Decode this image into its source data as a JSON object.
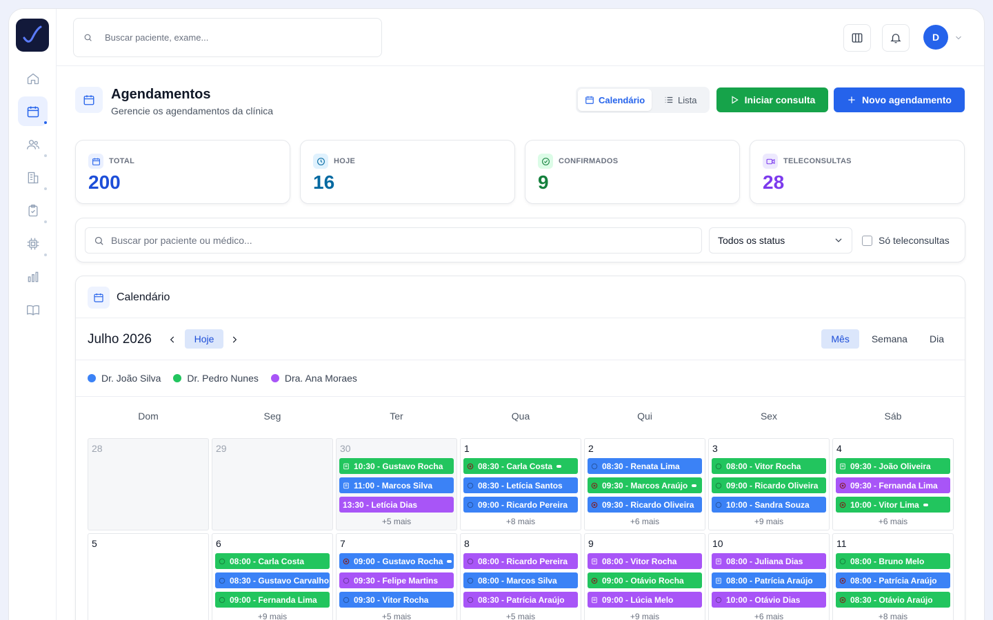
{
  "topbar": {
    "search_placeholder": "Buscar paciente, exame..."
  },
  "user": {
    "initial": "D"
  },
  "sidebar": {
    "items": [
      "home-icon",
      "calendar-icon",
      "users-icon",
      "building-icon",
      "clipboard-icon",
      "chip-icon",
      "bar-chart-icon",
      "book-icon"
    ],
    "active": "calendar-icon"
  },
  "page": {
    "title": "Agendamentos",
    "subtitle": "Gerencie os agendamentos da clínica"
  },
  "view_toggle": {
    "calendar": "Calendário",
    "list": "Lista"
  },
  "actions": {
    "start": "Iniciar consulta",
    "new": "Novo agendamento"
  },
  "stats": [
    {
      "label": "TOTAL",
      "value": "200",
      "color": "#1d4ed8",
      "bg": "#eaf0ff",
      "icon": "calendar-icon"
    },
    {
      "label": "HOJE",
      "value": "16",
      "color": "#0369a1",
      "bg": "#e0f2fe",
      "icon": "clock-icon"
    },
    {
      "label": "CONFIRMADOS",
      "value": "9",
      "color": "#15803d",
      "bg": "#dcfce7",
      "icon": "check-circle-icon"
    },
    {
      "label": "TELECONSULTAS",
      "value": "28",
      "color": "#7c3aed",
      "bg": "#ede9fe",
      "icon": "video-icon"
    }
  ],
  "filters": {
    "search_placeholder": "Buscar por paciente ou médico...",
    "status_value": "Todos os status",
    "tele_only": "Só teleconsultas"
  },
  "calendar": {
    "title": "Calendário",
    "month": "Julho 2026",
    "today": "Hoje",
    "views": [
      "Mês",
      "Semana",
      "Dia"
    ],
    "active_view": "Mês",
    "legend": [
      {
        "name": "Dr. João Silva",
        "color": "#3b82f6"
      },
      {
        "name": "Dr. Pedro Nunes",
        "color": "#22c55e"
      },
      {
        "name": "Dra. Ana Moraes",
        "color": "#a855f7"
      }
    ],
    "weekdays": [
      "Dom",
      "Seg",
      "Ter",
      "Qua",
      "Qui",
      "Sex",
      "Sáb"
    ],
    "days": [
      {
        "num": "28",
        "other": true,
        "events": []
      },
      {
        "num": "29",
        "other": true,
        "events": []
      },
      {
        "num": "30",
        "other": true,
        "more": "+5 mais",
        "events": [
          {
            "text": "10:30 - Gustavo Rocha",
            "color": "#22c55e",
            "icon": "doc"
          },
          {
            "text": "11:00 - Marcos Silva",
            "color": "#3b82f6",
            "icon": "doc"
          },
          {
            "text": "13:30 - Letícia Dias",
            "color": "#a855f7",
            "icon": "none"
          }
        ]
      },
      {
        "num": "1",
        "more": "+8 mais",
        "events": [
          {
            "text": "08:30 - Carla Costa",
            "color": "#22c55e",
            "icon": "cancel",
            "pill": true
          },
          {
            "text": "08:30 - Letícia Santos",
            "color": "#3b82f6",
            "icon": "ok"
          },
          {
            "text": "09:00 - Ricardo Pereira",
            "color": "#3b82f6",
            "icon": "ok"
          }
        ]
      },
      {
        "num": "2",
        "more": "+6 mais",
        "events": [
          {
            "text": "08:30 - Renata Lima",
            "color": "#3b82f6",
            "icon": "ok"
          },
          {
            "text": "09:30 - Marcos Araújo",
            "color": "#22c55e",
            "icon": "cancel",
            "pill": true
          },
          {
            "text": "09:30 - Ricardo Oliveira",
            "color": "#3b82f6",
            "icon": "cancel"
          }
        ]
      },
      {
        "num": "3",
        "more": "+9 mais",
        "events": [
          {
            "text": "08:00 - Vitor Rocha",
            "color": "#22c55e",
            "icon": "ok"
          },
          {
            "text": "09:00 - Ricardo Oliveira",
            "color": "#22c55e",
            "icon": "ok"
          },
          {
            "text": "10:00 - Sandra Souza",
            "color": "#3b82f6",
            "icon": "ok"
          }
        ]
      },
      {
        "num": "4",
        "more": "+6 mais",
        "events": [
          {
            "text": "09:30 - João Oliveira",
            "color": "#22c55e",
            "icon": "doc"
          },
          {
            "text": "09:30 - Fernanda Lima",
            "color": "#a855f7",
            "icon": "cancel"
          },
          {
            "text": "10:00 - Vitor Lima",
            "color": "#22c55e",
            "icon": "cancel",
            "pill": true
          }
        ]
      },
      {
        "num": "5",
        "events": []
      },
      {
        "num": "6",
        "more": "+9 mais",
        "events": [
          {
            "text": "08:00 - Carla Costa",
            "color": "#22c55e",
            "icon": "ok"
          },
          {
            "text": "08:30 - Gustavo Carvalho",
            "color": "#3b82f6",
            "icon": "ok"
          },
          {
            "text": "09:00 - Fernanda Lima",
            "color": "#22c55e",
            "icon": "ok"
          }
        ]
      },
      {
        "num": "7",
        "more": "+5 mais",
        "events": [
          {
            "text": "09:00 - Gustavo Rocha",
            "color": "#3b82f6",
            "icon": "cancel",
            "pill": true
          },
          {
            "text": "09:30 - Felipe Martins",
            "color": "#a855f7",
            "icon": "ok"
          },
          {
            "text": "09:30 - Vitor Rocha",
            "color": "#3b82f6",
            "icon": "ok"
          }
        ]
      },
      {
        "num": "8",
        "more": "+5 mais",
        "events": [
          {
            "text": "08:00 - Ricardo Pereira",
            "color": "#a855f7",
            "icon": "ok"
          },
          {
            "text": "08:00 - Marcos Silva",
            "color": "#3b82f6",
            "icon": "ok"
          },
          {
            "text": "08:30 - Patrícia Araújo",
            "color": "#a855f7",
            "icon": "ok"
          }
        ]
      },
      {
        "num": "9",
        "more": "+9 mais",
        "events": [
          {
            "text": "08:00 - Vitor Rocha",
            "color": "#a855f7",
            "icon": "doc"
          },
          {
            "text": "09:00 - Otávio Rocha",
            "color": "#22c55e",
            "icon": "cancel"
          },
          {
            "text": "09:00 - Lúcia Melo",
            "color": "#a855f7",
            "icon": "doc"
          }
        ]
      },
      {
        "num": "10",
        "more": "+6 mais",
        "events": [
          {
            "text": "08:00 - Juliana Dias",
            "color": "#a855f7",
            "icon": "doc"
          },
          {
            "text": "08:00 - Patrícia Araújo",
            "color": "#3b82f6",
            "icon": "doc"
          },
          {
            "text": "10:00 - Otávio Dias",
            "color": "#a855f7",
            "icon": "ok"
          }
        ]
      },
      {
        "num": "11",
        "more": "+8 mais",
        "events": [
          {
            "text": "08:00 - Bruno Melo",
            "color": "#22c55e",
            "icon": "ok"
          },
          {
            "text": "08:00 - Patrícia Araújo",
            "color": "#3b82f6",
            "icon": "cancel"
          },
          {
            "text": "08:30 - Otávio Araújo",
            "color": "#22c55e",
            "icon": "cancel"
          }
        ]
      }
    ]
  }
}
